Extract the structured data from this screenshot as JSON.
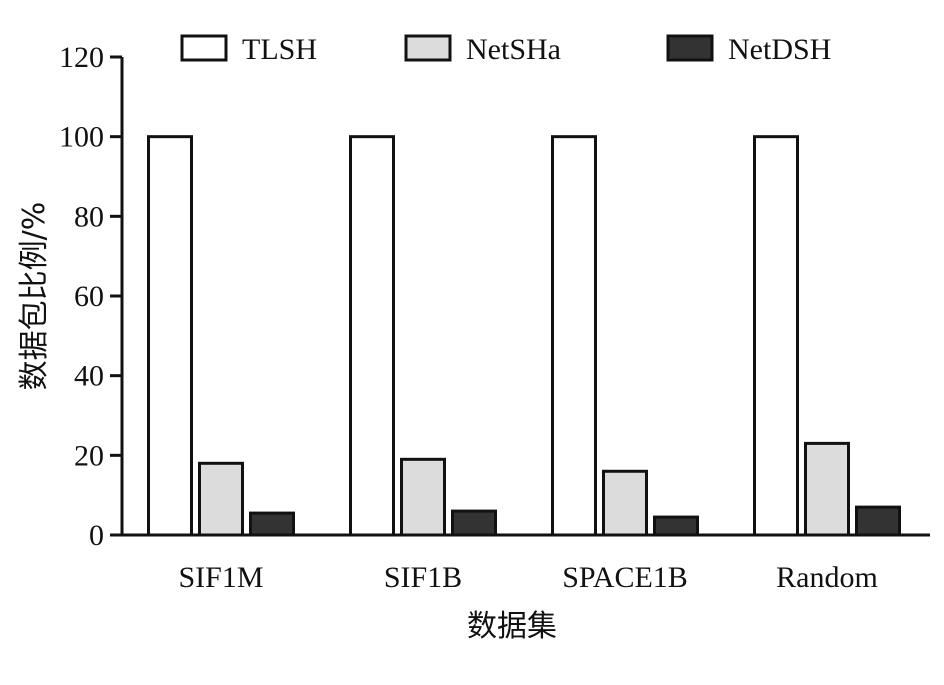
{
  "chart_data": {
    "type": "bar",
    "title": "",
    "xlabel": "数据集",
    "ylabel": "数据包比例/%",
    "categories": [
      "SIF1M",
      "SIF1B",
      "SPACE1B",
      "Random"
    ],
    "series": [
      {
        "name": "TLSH",
        "values": [
          100,
          100,
          100,
          100
        ],
        "color": "#ffffff"
      },
      {
        "name": "NetSHa",
        "values": [
          18,
          19,
          16,
          23
        ],
        "color": "#dcdcdc"
      },
      {
        "name": "NetDSH",
        "values": [
          5.5,
          6,
          4.5,
          7
        ],
        "color": "#333333"
      }
    ],
    "ylim": [
      0,
      120
    ],
    "yticks": [
      "0",
      "20",
      "40",
      "60",
      "80",
      "100",
      "120"
    ],
    "grid": false,
    "legend_position": "top"
  }
}
